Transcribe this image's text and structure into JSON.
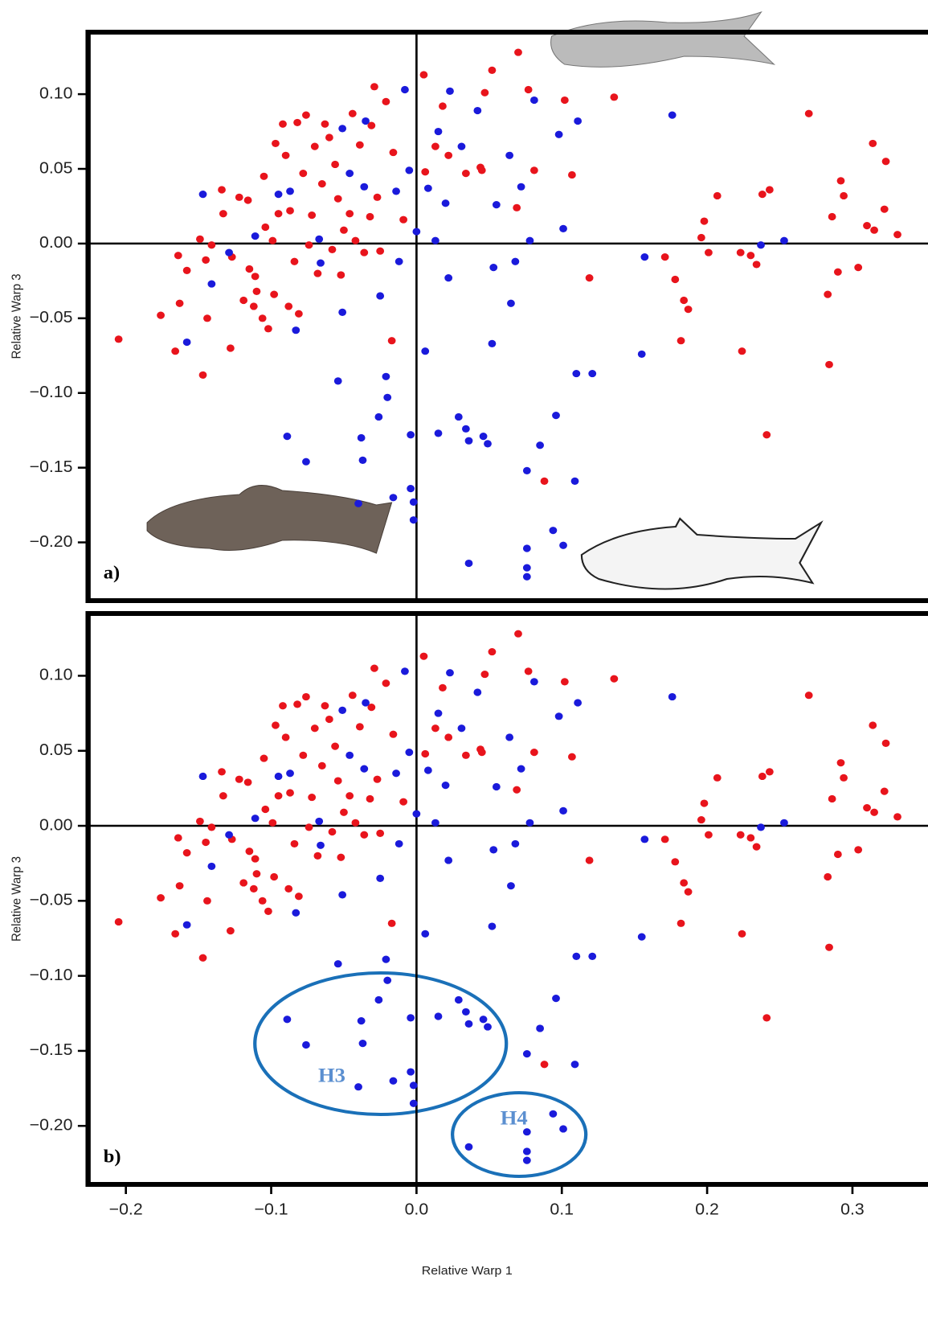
{
  "chart_data": [
    {
      "type": "scatter",
      "panel_label": "a)",
      "ylabel": "Relative Warp 3",
      "xlim": [
        -0.226,
        0.352
      ],
      "ylim": [
        -0.239,
        0.1415
      ],
      "yticks": [
        {
          "value": 0.1,
          "label": "0.10"
        },
        {
          "value": 0.05,
          "label": "0.05"
        },
        {
          "value": 0,
          "label": "0.00"
        },
        {
          "value": -0.05,
          "label": "−0.05"
        },
        {
          "value": -0.1,
          "label": "−0.10"
        },
        {
          "value": -0.15,
          "label": "−0.15"
        },
        {
          "value": -0.2,
          "label": "−0.20"
        }
      ],
      "series": [
        {
          "color": "#e8141c",
          "x": [
            -0.205,
            -0.176,
            -0.166,
            -0.164,
            -0.163,
            -0.158,
            -0.149,
            -0.147,
            -0.145,
            -0.144,
            -0.141,
            -0.134,
            -0.133,
            -0.128,
            -0.127,
            -0.122,
            -0.119,
            -0.116,
            -0.115,
            -0.112,
            -0.111,
            -0.11,
            -0.106,
            -0.105,
            -0.104,
            -0.102,
            -0.099,
            -0.098,
            -0.097,
            -0.095,
            -0.092,
            -0.09,
            -0.088,
            -0.087,
            -0.084,
            -0.082,
            -0.081,
            -0.078,
            -0.076,
            -0.074,
            -0.072,
            -0.07,
            -0.068,
            -0.065,
            -0.063,
            -0.06,
            -0.058,
            -0.056,
            -0.054,
            -0.052,
            -0.05,
            -0.046,
            -0.044,
            -0.042,
            -0.039,
            -0.036,
            -0.032,
            -0.031,
            -0.029,
            -0.027,
            -0.025,
            -0.021,
            -0.017,
            -0.016,
            -0.009,
            0.005,
            0.006,
            0.013,
            0.018,
            0.022,
            0.034,
            0.044,
            0.045,
            0.052,
            0.047,
            0.069,
            0.07,
            0.077,
            0.081,
            0.088,
            0.102,
            0.107,
            0.119,
            0.136,
            0.171,
            0.178,
            0.182,
            0.184,
            0.187,
            0.196,
            0.198,
            0.201,
            0.207,
            0.223,
            0.224,
            0.23,
            0.234,
            0.238,
            0.241,
            0.243,
            0.27,
            0.283,
            0.284,
            0.286,
            0.29,
            0.292,
            0.294,
            0.304,
            0.31,
            0.314,
            0.315,
            0.322,
            0.323,
            0.331
          ],
          "values": [
            -0.064,
            -0.048,
            -0.072,
            -0.008,
            -0.04,
            -0.018,
            0.003,
            -0.088,
            -0.011,
            -0.05,
            -0.001,
            0.036,
            0.02,
            -0.07,
            -0.009,
            0.031,
            -0.038,
            0.029,
            -0.017,
            -0.042,
            -0.022,
            -0.032,
            -0.05,
            0.045,
            0.011,
            -0.057,
            0.002,
            -0.034,
            0.067,
            0.02,
            0.08,
            0.059,
            -0.042,
            0.022,
            -0.012,
            0.081,
            -0.047,
            0.047,
            0.086,
            -0.001,
            0.019,
            0.065,
            -0.02,
            0.04,
            0.08,
            0.071,
            -0.004,
            0.053,
            0.03,
            -0.021,
            0.009,
            0.02,
            0.087,
            0.002,
            0.066,
            -0.006,
            0.018,
            0.079,
            0.105,
            0.031,
            -0.005,
            0.095,
            -0.065,
            0.061,
            0.016,
            0.113,
            0.048,
            0.065,
            0.092,
            0.059,
            0.047,
            0.051,
            0.049,
            0.116,
            0.101,
            0.024,
            0.128,
            0.103,
            0.049,
            -0.159,
            0.096,
            0.046,
            -0.023,
            0.098,
            -0.009,
            -0.024,
            -0.065,
            -0.038,
            -0.044,
            0.004,
            0.015,
            -0.006,
            0.032,
            -0.006,
            -0.072,
            -0.008,
            -0.014,
            0.033,
            -0.128,
            0.036,
            0.087,
            -0.034,
            -0.081,
            0.018,
            -0.019,
            0.042,
            0.032,
            -0.016,
            0.012,
            0.067,
            0.009,
            0.023,
            0.055,
            0.006
          ]
        },
        {
          "color": "#1a1adb",
          "x": [
            -0.147,
            -0.158,
            -0.141,
            -0.129,
            -0.111,
            -0.095,
            -0.087,
            -0.083,
            -0.089,
            -0.076,
            -0.067,
            -0.066,
            -0.051,
            -0.054,
            -0.051,
            -0.046,
            -0.036,
            -0.038,
            -0.037,
            -0.04,
            -0.035,
            -0.026,
            -0.025,
            -0.021,
            -0.02,
            -0.016,
            -0.012,
            -0.008,
            -0.014,
            -0.005,
            -0.004,
            -0.004,
            -0.002,
            -0.002,
            0.0,
            0.006,
            0.008,
            0.013,
            0.015,
            0.015,
            0.02,
            0.023,
            0.022,
            0.029,
            0.034,
            0.036,
            0.036,
            0.031,
            0.042,
            0.046,
            0.049,
            0.052,
            0.053,
            0.055,
            0.064,
            0.065,
            0.068,
            0.072,
            0.076,
            0.076,
            0.076,
            0.076,
            0.078,
            0.081,
            0.085,
            0.094,
            0.096,
            0.098,
            0.101,
            0.101,
            0.109,
            0.11,
            0.111,
            0.121,
            0.155,
            0.157,
            0.176,
            0.237,
            0.253
          ],
          "values": [
            0.033,
            -0.066,
            -0.027,
            -0.006,
            0.005,
            0.033,
            0.035,
            -0.058,
            -0.129,
            -0.146,
            0.003,
            -0.013,
            0.077,
            -0.092,
            -0.046,
            0.047,
            0.038,
            -0.13,
            -0.145,
            -0.174,
            0.082,
            -0.116,
            -0.035,
            -0.089,
            -0.103,
            -0.17,
            -0.012,
            0.103,
            0.035,
            0.049,
            -0.128,
            -0.164,
            -0.185,
            -0.173,
            0.008,
            -0.072,
            0.037,
            0.002,
            -0.127,
            0.075,
            0.027,
            0.102,
            -0.023,
            -0.116,
            -0.124,
            -0.132,
            -0.214,
            0.065,
            0.089,
            -0.129,
            -0.134,
            -0.067,
            -0.016,
            0.026,
            0.059,
            -0.04,
            -0.012,
            0.038,
            -0.152,
            -0.223,
            -0.217,
            -0.204,
            0.002,
            0.096,
            -0.135,
            -0.192,
            -0.115,
            0.073,
            0.01,
            -0.202,
            -0.159,
            -0.087,
            0.082,
            -0.087,
            -0.074,
            -0.009,
            0.086,
            -0.001,
            0.002
          ]
        }
      ]
    },
    {
      "type": "scatter",
      "panel_label": "b)",
      "ylabel": "Relative Warp 3",
      "xlabel": "Relative Warp 1",
      "annotations": [
        "H3",
        "H4"
      ],
      "xlim": [
        -0.226,
        0.352
      ],
      "ylim": [
        -0.239,
        0.1415
      ],
      "xticks": [
        {
          "value": -0.2,
          "label": "−0.2"
        },
        {
          "value": -0.1,
          "label": "−0.1"
        },
        {
          "value": 0,
          "label": "0.0"
        },
        {
          "value": 0.1,
          "label": "0.1"
        },
        {
          "value": 0.2,
          "label": "0.2"
        },
        {
          "value": 0.3,
          "label": "0.3"
        }
      ],
      "yticks": [
        {
          "value": 0.1,
          "label": "0.10"
        },
        {
          "value": 0.05,
          "label": "0.05"
        },
        {
          "value": 0,
          "label": "0.00"
        },
        {
          "value": -0.05,
          "label": "−0.05"
        },
        {
          "value": -0.1,
          "label": "−0.10"
        },
        {
          "value": -0.15,
          "label": "−0.15"
        },
        {
          "value": -0.2,
          "label": "−0.20"
        }
      ],
      "series": [
        {
          "color": "#e8141c",
          "x": [
            -0.205,
            -0.176,
            -0.166,
            -0.164,
            -0.163,
            -0.158,
            -0.149,
            -0.147,
            -0.145,
            -0.144,
            -0.141,
            -0.134,
            -0.133,
            -0.128,
            -0.127,
            -0.122,
            -0.119,
            -0.116,
            -0.115,
            -0.112,
            -0.111,
            -0.11,
            -0.106,
            -0.105,
            -0.104,
            -0.102,
            -0.099,
            -0.098,
            -0.097,
            -0.095,
            -0.092,
            -0.09,
            -0.088,
            -0.087,
            -0.084,
            -0.082,
            -0.081,
            -0.078,
            -0.076,
            -0.074,
            -0.072,
            -0.07,
            -0.068,
            -0.065,
            -0.063,
            -0.06,
            -0.058,
            -0.056,
            -0.054,
            -0.052,
            -0.05,
            -0.046,
            -0.044,
            -0.042,
            -0.039,
            -0.036,
            -0.032,
            -0.031,
            -0.029,
            -0.027,
            -0.025,
            -0.021,
            -0.017,
            -0.016,
            -0.009,
            0.005,
            0.006,
            0.013,
            0.018,
            0.022,
            0.034,
            0.044,
            0.045,
            0.052,
            0.047,
            0.069,
            0.07,
            0.077,
            0.081,
            0.088,
            0.102,
            0.107,
            0.119,
            0.136,
            0.171,
            0.178,
            0.182,
            0.184,
            0.187,
            0.196,
            0.198,
            0.201,
            0.207,
            0.223,
            0.224,
            0.23,
            0.234,
            0.238,
            0.241,
            0.243,
            0.27,
            0.283,
            0.284,
            0.286,
            0.29,
            0.292,
            0.294,
            0.304,
            0.31,
            0.314,
            0.315,
            0.322,
            0.323,
            0.331
          ],
          "values": [
            -0.064,
            -0.048,
            -0.072,
            -0.008,
            -0.04,
            -0.018,
            0.003,
            -0.088,
            -0.011,
            -0.05,
            -0.001,
            0.036,
            0.02,
            -0.07,
            -0.009,
            0.031,
            -0.038,
            0.029,
            -0.017,
            -0.042,
            -0.022,
            -0.032,
            -0.05,
            0.045,
            0.011,
            -0.057,
            0.002,
            -0.034,
            0.067,
            0.02,
            0.08,
            0.059,
            -0.042,
            0.022,
            -0.012,
            0.081,
            -0.047,
            0.047,
            0.086,
            -0.001,
            0.019,
            0.065,
            -0.02,
            0.04,
            0.08,
            0.071,
            -0.004,
            0.053,
            0.03,
            -0.021,
            0.009,
            0.02,
            0.087,
            0.002,
            0.066,
            -0.006,
            0.018,
            0.079,
            0.105,
            0.031,
            -0.005,
            0.095,
            -0.065,
            0.061,
            0.016,
            0.113,
            0.048,
            0.065,
            0.092,
            0.059,
            0.047,
            0.051,
            0.049,
            0.116,
            0.101,
            0.024,
            0.128,
            0.103,
            0.049,
            -0.159,
            0.096,
            0.046,
            -0.023,
            0.098,
            -0.009,
            -0.024,
            -0.065,
            -0.038,
            -0.044,
            0.004,
            0.015,
            -0.006,
            0.032,
            -0.006,
            -0.072,
            -0.008,
            -0.014,
            0.033,
            -0.128,
            0.036,
            0.087,
            -0.034,
            -0.081,
            0.018,
            -0.019,
            0.042,
            0.032,
            -0.016,
            0.012,
            0.067,
            0.009,
            0.023,
            0.055,
            0.006
          ]
        },
        {
          "color": "#1a1adb",
          "x": [
            -0.147,
            -0.158,
            -0.141,
            -0.129,
            -0.111,
            -0.095,
            -0.087,
            -0.083,
            -0.089,
            -0.076,
            -0.067,
            -0.066,
            -0.051,
            -0.054,
            -0.051,
            -0.046,
            -0.036,
            -0.038,
            -0.037,
            -0.04,
            -0.035,
            -0.026,
            -0.025,
            -0.021,
            -0.02,
            -0.016,
            -0.012,
            -0.008,
            -0.014,
            -0.005,
            -0.004,
            -0.004,
            -0.002,
            -0.002,
            0.0,
            0.006,
            0.008,
            0.013,
            0.015,
            0.015,
            0.02,
            0.023,
            0.022,
            0.029,
            0.034,
            0.036,
            0.036,
            0.031,
            0.042,
            0.046,
            0.049,
            0.052,
            0.053,
            0.055,
            0.064,
            0.065,
            0.068,
            0.072,
            0.076,
            0.076,
            0.076,
            0.076,
            0.078,
            0.081,
            0.085,
            0.094,
            0.096,
            0.098,
            0.101,
            0.101,
            0.109,
            0.11,
            0.111,
            0.121,
            0.155,
            0.157,
            0.176,
            0.237,
            0.253
          ],
          "values": [
            0.033,
            -0.066,
            -0.027,
            -0.006,
            0.005,
            0.033,
            0.035,
            -0.058,
            -0.129,
            -0.146,
            0.003,
            -0.013,
            0.077,
            -0.092,
            -0.046,
            0.047,
            0.038,
            -0.13,
            -0.145,
            -0.174,
            0.082,
            -0.116,
            -0.035,
            -0.089,
            -0.103,
            -0.17,
            -0.012,
            0.103,
            0.035,
            0.049,
            -0.128,
            -0.164,
            -0.185,
            -0.173,
            0.008,
            -0.072,
            0.037,
            0.002,
            -0.127,
            0.075,
            0.027,
            0.102,
            -0.023,
            -0.116,
            -0.124,
            -0.132,
            -0.214,
            0.065,
            0.089,
            -0.129,
            -0.134,
            -0.067,
            -0.016,
            0.026,
            0.059,
            -0.04,
            -0.012,
            0.038,
            -0.152,
            -0.223,
            -0.217,
            -0.204,
            0.002,
            0.096,
            -0.135,
            -0.192,
            -0.115,
            0.073,
            0.01,
            -0.202,
            -0.159,
            -0.087,
            0.082,
            -0.087,
            -0.074,
            -0.009,
            0.086,
            -0.001,
            0.002
          ]
        }
      ]
    }
  ]
}
